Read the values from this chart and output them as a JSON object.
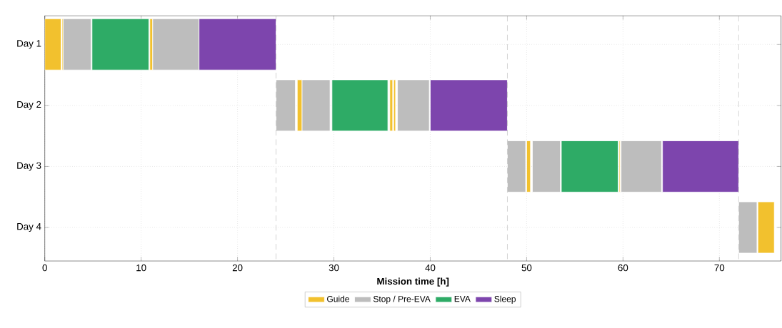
{
  "chart_data": {
    "type": "bar",
    "orientation": "horizontal",
    "xlabel": "Mission time [h]",
    "categories": [
      "Day 1",
      "Day 2",
      "Day 3",
      "Day 4"
    ],
    "xlim": [
      0,
      76.4
    ],
    "xticks": [
      0,
      10,
      20,
      30,
      40,
      50,
      60,
      70
    ],
    "grid": true,
    "legend": "bottom",
    "series": [
      {
        "name": "Guide",
        "color": "#f2c12e",
        "base": [
          0,
          26.2,
          50.0,
          74.0
        ],
        "values": [
          1.7,
          0.5,
          0.4,
          1.7
        ]
      },
      {
        "name": "Stop / Pre-EVA",
        "color": "#bdbdbd",
        "base": [
          1.9,
          24.0,
          48.0,
          72.0
        ],
        "values": [
          2.9,
          2.0,
          1.9,
          1.9
        ]
      },
      {
        "name": "EVA",
        "color": "#2eab66",
        "base": [
          4.9,
          29.8,
          53.6,
          null
        ],
        "values": [
          5.9,
          5.8,
          5.9,
          null
        ]
      },
      {
        "name": "Sleep",
        "color": "#7d45ad",
        "base": [
          16.0,
          40.0,
          64.1,
          null
        ],
        "values": [
          8.0,
          8.0,
          7.9,
          null
        ]
      },
      {
        "color": "#f2c12e",
        "base": [
          1.8,
          35.8,
          59.6,
          null
        ],
        "values": [
          0.1,
          0.3,
          0.1,
          null
        ]
      },
      {
        "color": "#f2c12e",
        "base": [
          10.9,
          36.2,
          null,
          null
        ],
        "values": [
          0.3,
          0.2,
          null,
          null
        ]
      },
      {
        "color": "#bdbdbd",
        "base": [
          11.2,
          26.7,
          50.6,
          null
        ],
        "values": [
          4.8,
          2.9,
          2.9,
          null
        ]
      },
      {
        "color": "#bdbdbd",
        "base": [
          null,
          36.6,
          59.8,
          null
        ],
        "values": [
          null,
          3.3,
          4.2,
          null
        ]
      }
    ],
    "ref_lines": [
      {
        "axis": "x",
        "value": 24,
        "color": "#9a9a9a",
        "line_style": "dashed"
      },
      {
        "axis": "x",
        "value": 48,
        "color": "#9a9a9a",
        "line_style": "dashed"
      },
      {
        "axis": "x",
        "value": 72,
        "color": "#9a9a9a",
        "line_style": "dashed"
      }
    ]
  }
}
